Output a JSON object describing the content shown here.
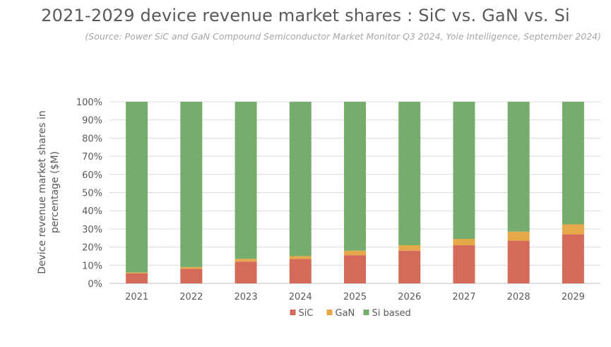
{
  "chart_data": {
    "type": "bar",
    "stacked": true,
    "title": "2021-2029 device revenue market shares : SiC vs. GaN vs. Si",
    "subtitle": "(Source: Power SiC and GaN Compound Semiconductor Market Monitor Q3 2024, Yole Intelligence, September 2024)",
    "ylabel_line1": "Device revenue market shares  in",
    "ylabel_line2": "percentage ($M)",
    "xlabel": "",
    "ylim": [
      0,
      100
    ],
    "yticks": [
      "0%",
      "10%",
      "20%",
      "30%",
      "40%",
      "50%",
      "60%",
      "70%",
      "80%",
      "90%",
      "100%"
    ],
    "categories": [
      "2021",
      "2022",
      "2023",
      "2024",
      "2025",
      "2026",
      "2027",
      "2028",
      "2029"
    ],
    "series": [
      {
        "name": "SiC",
        "color": "#d46a5a",
        "values": [
          5.5,
          8.0,
          12.0,
          13.5,
          15.5,
          18.0,
          21.0,
          23.5,
          27.0
        ]
      },
      {
        "name": "GaN",
        "color": "#e7a84a",
        "values": [
          0.5,
          1.0,
          1.5,
          1.5,
          2.5,
          3.0,
          3.5,
          5.0,
          5.5
        ]
      },
      {
        "name": "Si based",
        "color": "#76ad6d",
        "values": [
          94.0,
          91.0,
          86.5,
          85.0,
          82.0,
          79.0,
          75.5,
          71.5,
          67.5
        ]
      }
    ],
    "legend_position": "bottom",
    "grid": true
  }
}
